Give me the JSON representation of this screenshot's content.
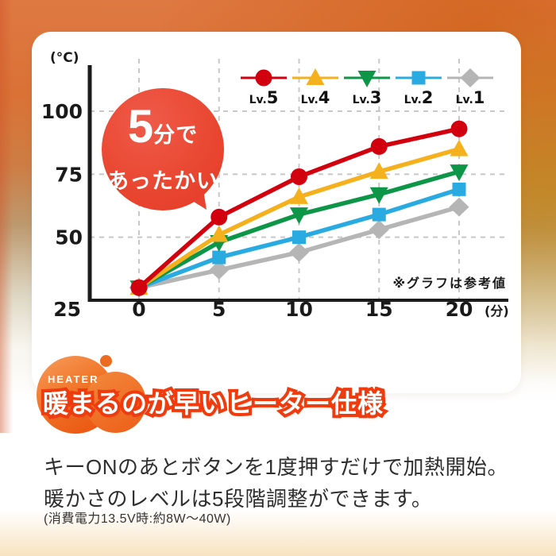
{
  "chart": {
    "y_unit": "(°C)",
    "x_unit": "(分)",
    "note": "※グラフは参考値",
    "y_ticks": [
      100,
      75,
      50,
      25
    ],
    "x_ticks": [
      0,
      5,
      10,
      15,
      20
    ]
  },
  "chart_data": {
    "type": "line",
    "title": "",
    "x": [
      0,
      5,
      10,
      15,
      20
    ],
    "xlabel": "(分)",
    "ylabel": "(°C)",
    "xlim": [
      0,
      20
    ],
    "ylim": [
      25,
      118
    ],
    "grid": true,
    "legend_position": "top-right",
    "annotation": "※グラフは参考値",
    "series": [
      {
        "name": "Lv.5",
        "color": "#d2000f",
        "marker": "circle",
        "values": [
          30,
          58,
          74,
          86,
          93
        ]
      },
      {
        "name": "Lv.4",
        "color": "#f5b01e",
        "marker": "triangle-up",
        "values": [
          30,
          51,
          66,
          76,
          85
        ]
      },
      {
        "name": "Lv.3",
        "color": "#0e9648",
        "marker": "triangle-down",
        "values": [
          30,
          48,
          59,
          67,
          76
        ]
      },
      {
        "name": "Lv.2",
        "color": "#29abe2",
        "marker": "square",
        "values": [
          30,
          42,
          50,
          59,
          69
        ]
      },
      {
        "name": "Lv.1",
        "color": "#b5b5b5",
        "marker": "diamond",
        "values": [
          30,
          37,
          44,
          53,
          62
        ]
      }
    ]
  },
  "speech_bubble": {
    "line1_big": "5",
    "line1_small": "分で",
    "line2": "あったかい",
    "color": "#e9483a"
  },
  "feature": {
    "eyebrow": "HEATER",
    "heading": "暖まるのが早いヒーター仕様",
    "body_line1": "キーONのあとボタンを1度押すだけで加熱開始。",
    "body_line2": "暖かさのレベルは5段階調整ができます。",
    "note": "(消費電力13.5V時:約8W〜40W)",
    "accent_color": "#ee3c0f"
  }
}
